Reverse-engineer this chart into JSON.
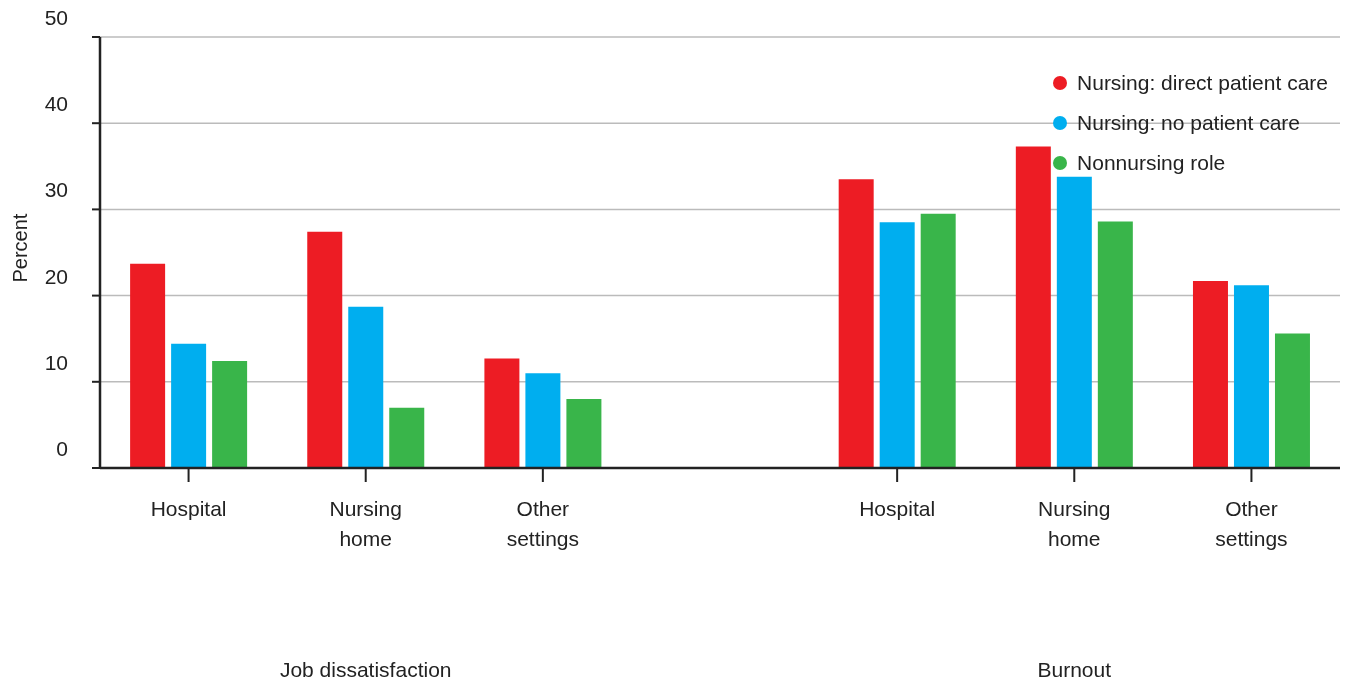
{
  "chart_data": {
    "type": "bar",
    "ylabel": "Percent",
    "categories": [
      "Hospital",
      "Nursing home",
      "Other settings",
      null,
      "Hospital",
      "Nursing home",
      "Other settings"
    ],
    "series": [
      {
        "name": "Nursing: direct patient care",
        "color": "#ed1c24",
        "values": [
          23.7,
          27.4,
          12.7,
          null,
          33.5,
          37.3,
          21.7
        ]
      },
      {
        "name": "Nursing: no patient care",
        "color": "#00aeef",
        "values": [
          14.4,
          18.7,
          11.0,
          null,
          28.5,
          33.8,
          21.2
        ]
      },
      {
        "name": "Nonnursing role",
        "color": "#39b54a",
        "values": [
          12.4,
          7.0,
          8.0,
          null,
          29.5,
          28.6,
          15.6
        ]
      }
    ],
    "ylim": [
      0,
      50
    ],
    "yticks": [
      0,
      10,
      20,
      30,
      40,
      50
    ],
    "grid": "y",
    "legend": "top right",
    "annotations": [
      "Job dissatisfaction",
      "Burnout"
    ]
  }
}
